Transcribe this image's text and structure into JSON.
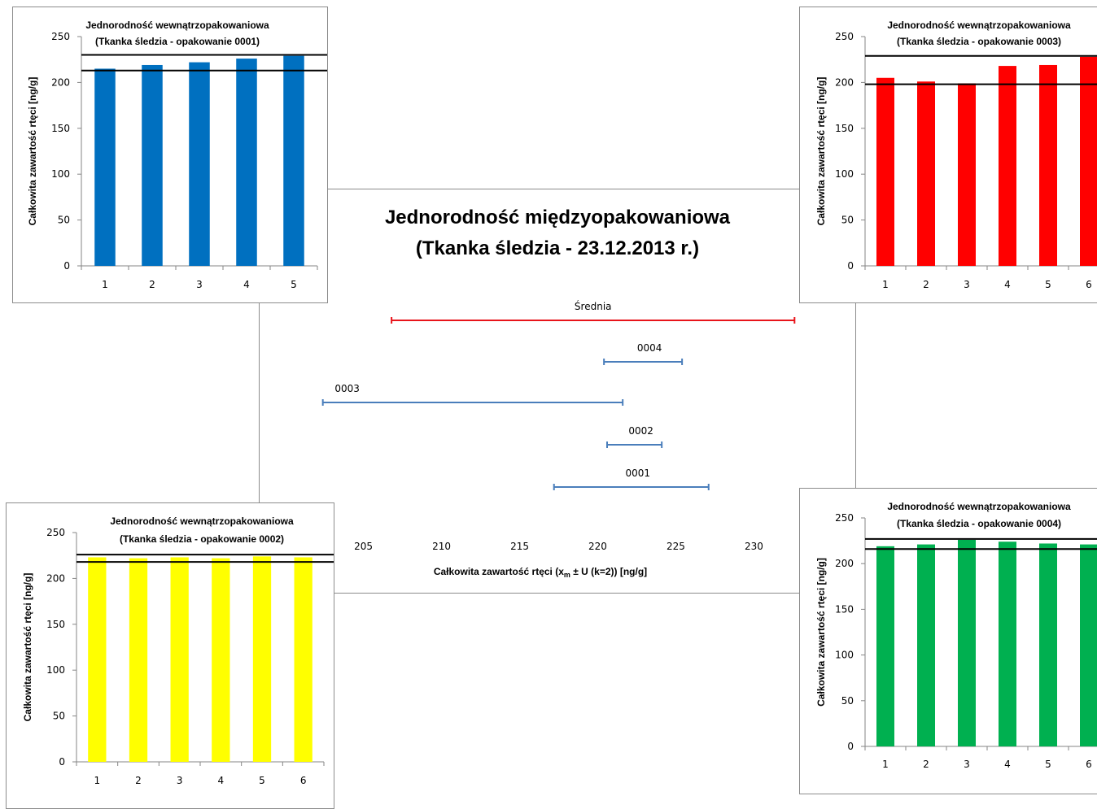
{
  "chart_data": [
    {
      "type": "errorbar",
      "id": "main",
      "title_lines": [
        "Jednorodność międzyopakowaniowa",
        "(Tkanka śledzia - 23.12.2013 r.)"
      ],
      "xlabel": "Całkowita zawartość rtęci (x",
      "xlabel_sub": "m",
      "xlabel_tail": " ± U (k=2)) [ng/g]",
      "xticks": [
        205,
        210,
        215,
        220,
        225,
        230
      ],
      "xlim": [
        202,
        233
      ],
      "series": [
        {
          "name": "Średnia",
          "low": 206.8,
          "high": 232.6,
          "color": "#e8141b"
        },
        {
          "name": "0004",
          "low": 220.4,
          "high": 225.4,
          "color": "#4a7ebb"
        },
        {
          "name": "0003",
          "low": 202.4,
          "high": 221.6,
          "color": "#4a7ebb"
        },
        {
          "name": "0002",
          "low": 220.6,
          "high": 224.1,
          "color": "#4a7ebb"
        },
        {
          "name": "0001",
          "low": 217.2,
          "high": 227.1,
          "color": "#4a7ebb"
        }
      ]
    },
    {
      "type": "bar",
      "id": "p1",
      "title_lines": [
        "Jednorodność wewnątrzopakowaniowa",
        "(Tkanka śledzia - opakowanie 0001)"
      ],
      "ylabel": "Całkowita zawartość rtęci [ng/g]",
      "categories": [
        "1",
        "2",
        "3",
        "4",
        "5"
      ],
      "values": [
        215,
        219,
        222,
        226,
        229
      ],
      "ylim": [
        0,
        250
      ],
      "yticks": [
        0,
        50,
        100,
        150,
        200,
        250
      ],
      "ref_lines": [
        213,
        230
      ],
      "color": "#0070c0"
    },
    {
      "type": "bar",
      "id": "p3",
      "title_lines": [
        "Jednorodność wewnątrzopakowaniowa",
        "(Tkanka śledzia - opakowanie 0003)"
      ],
      "ylabel": "Całkowita zawartość rtęci [ng/g]",
      "categories": [
        "1",
        "2",
        "3",
        "4",
        "5",
        "6"
      ],
      "values": [
        205,
        201,
        199,
        218,
        219,
        228
      ],
      "ylim": [
        0,
        250
      ],
      "yticks": [
        0,
        50,
        100,
        150,
        200,
        250
      ],
      "ref_lines": [
        198,
        229
      ],
      "color": "#ff0000"
    },
    {
      "type": "bar",
      "id": "p2",
      "title_lines": [
        "Jednorodność wewnątrzopakowaniowa",
        "(Tkanka śledzia - opakowanie 0002)"
      ],
      "ylabel": "Całkowita zawartość rtęci [ng/g]",
      "categories": [
        "1",
        "2",
        "3",
        "4",
        "5",
        "6"
      ],
      "values": [
        223,
        222,
        223,
        222,
        224,
        223
      ],
      "ylim": [
        0,
        250
      ],
      "yticks": [
        0,
        50,
        100,
        150,
        200,
        250
      ],
      "ref_lines": [
        218,
        226
      ],
      "color": "#ffff00"
    },
    {
      "type": "bar",
      "id": "p4",
      "title_lines": [
        "Jednorodność wewnątrzopakowaniowa",
        "(Tkanka śledzia - opakowanie 0004)"
      ],
      "ylabel": "Całkowita zawartość rtęci [ng/g]",
      "categories": [
        "1",
        "2",
        "3",
        "4",
        "5",
        "6"
      ],
      "values": [
        219,
        221,
        226,
        224,
        222,
        221
      ],
      "ylim": [
        0,
        250
      ],
      "yticks": [
        0,
        50,
        100,
        150,
        200,
        250
      ],
      "ref_lines": [
        216,
        227
      ],
      "color": "#00b050"
    }
  ]
}
